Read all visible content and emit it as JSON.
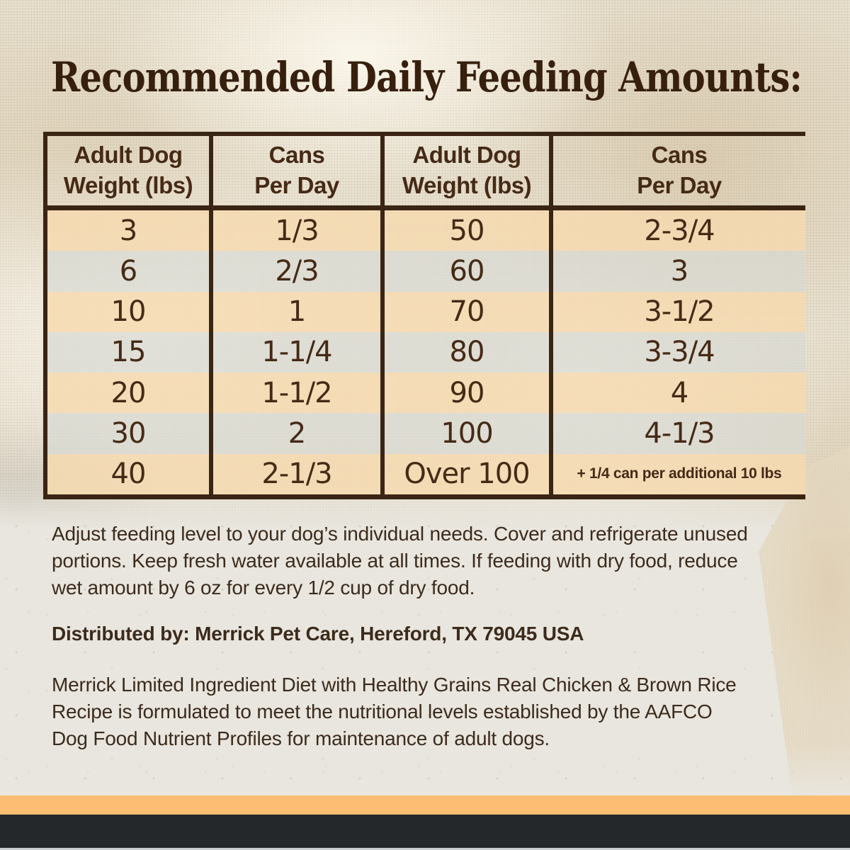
{
  "title": "Recommended Daily Feeding Amounts:",
  "table": {
    "headers": [
      "Adult Dog\nWeight (lbs)",
      "Cans\nPer Day",
      "Adult Dog\nWeight (lbs)",
      "Cans\nPer Day"
    ],
    "rows": [
      {
        "cols": [
          "3",
          "1/3",
          "50",
          "2-3/4"
        ]
      },
      {
        "cols": [
          "6",
          "2/3",
          "60",
          "3"
        ]
      },
      {
        "cols": [
          "10",
          "1",
          "70",
          "3-1/2"
        ]
      },
      {
        "cols": [
          "15",
          "1-1/4",
          "80",
          "3-3/4"
        ]
      },
      {
        "cols": [
          "20",
          "1-1/2",
          "90",
          "4"
        ]
      },
      {
        "cols": [
          "30",
          "2",
          "100",
          "4-1/3"
        ]
      },
      {
        "cols": [
          "40",
          "2-1/3",
          "Over 100",
          "+ 1/4 can per additional 10 lbs"
        ]
      }
    ]
  },
  "paragraphs": {
    "adjust": [
      "Adjust feeding level to your dog’s individual needs. Cover and refrigerate unused",
      "portions. Keep fresh water available at all times. If feeding with dry food, reduce",
      "wet amount by 6 oz for every 1/2 cup of dry food."
    ],
    "distributed": "Distributed by: Merrick Pet Care, Hereford, TX 79045 USA",
    "aafco": [
      "Merrick Limited Ingredient Diet with Healthy Grains Real Chicken & Brown Rice",
      "Recipe is formulated to meet the nutritional levels established by the AAFCO",
      "Dog Food Nutrient Profiles for maintenance of adult dogs."
    ]
  },
  "colors": {
    "title_ink": "#371f0e",
    "text_ink": "#3c2b1c",
    "table_ink": "#452a16",
    "table_border": "#3a2414",
    "stripe_peach": "#f6d9ae",
    "stripe_gray": "#d7d8d3",
    "footer_orange": "#fdbd73",
    "footer_dark": "#24282a",
    "footer_bottom_line": "#c9cdd0",
    "paper": "#e9e6df",
    "burlap": "#e7dfcd"
  }
}
